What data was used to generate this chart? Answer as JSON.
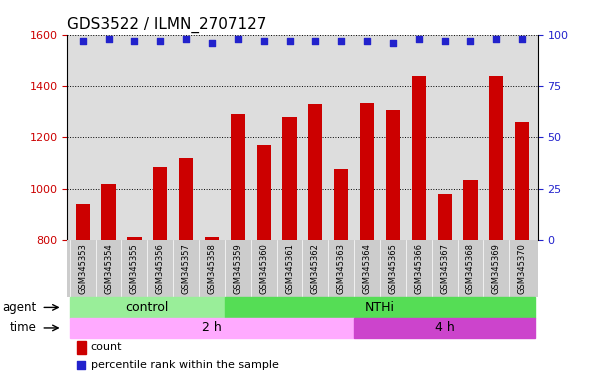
{
  "title": "GDS3522 / ILMN_2707127",
  "samples": [
    "GSM345353",
    "GSM345354",
    "GSM345355",
    "GSM345356",
    "GSM345357",
    "GSM345358",
    "GSM345359",
    "GSM345360",
    "GSM345361",
    "GSM345362",
    "GSM345363",
    "GSM345364",
    "GSM345365",
    "GSM345366",
    "GSM345367",
    "GSM345368",
    "GSM345369",
    "GSM345370"
  ],
  "counts": [
    940,
    1020,
    810,
    1085,
    1120,
    810,
    1290,
    1170,
    1280,
    1330,
    1075,
    1335,
    1305,
    1440,
    980,
    1035,
    1440,
    1260
  ],
  "percentile_ranks": [
    97,
    98,
    97,
    97,
    98,
    96,
    98,
    97,
    97,
    97,
    97,
    97,
    96,
    98,
    97,
    97,
    98,
    98
  ],
  "bar_color": "#cc0000",
  "dot_color": "#2222cc",
  "ylim_left": [
    800,
    1600
  ],
  "ylim_right": [
    0,
    100
  ],
  "yticks_left": [
    800,
    1000,
    1200,
    1400,
    1600
  ],
  "yticks_right": [
    0,
    25,
    50,
    75,
    100
  ],
  "agent_labels": [
    {
      "label": "control",
      "start": 0,
      "end": 5,
      "color": "#99ee99"
    },
    {
      "label": "NTHi",
      "start": 6,
      "end": 17,
      "color": "#55dd55"
    }
  ],
  "time_labels": [
    {
      "label": "2 h",
      "start": 0,
      "end": 10,
      "color": "#ffaaff"
    },
    {
      "label": "4 h",
      "start": 11,
      "end": 17,
      "color": "#cc44cc"
    }
  ],
  "legend_count_color": "#cc0000",
  "legend_dot_color": "#2222cc",
  "background_color": "#ffffff",
  "plot_bg_color": "#dddddd",
  "tick_bg_color": "#cccccc",
  "xlabel_color": "#cc0000",
  "ylabel_right_color": "#2222cc",
  "title_fontsize": 11,
  "bar_width": 0.55
}
